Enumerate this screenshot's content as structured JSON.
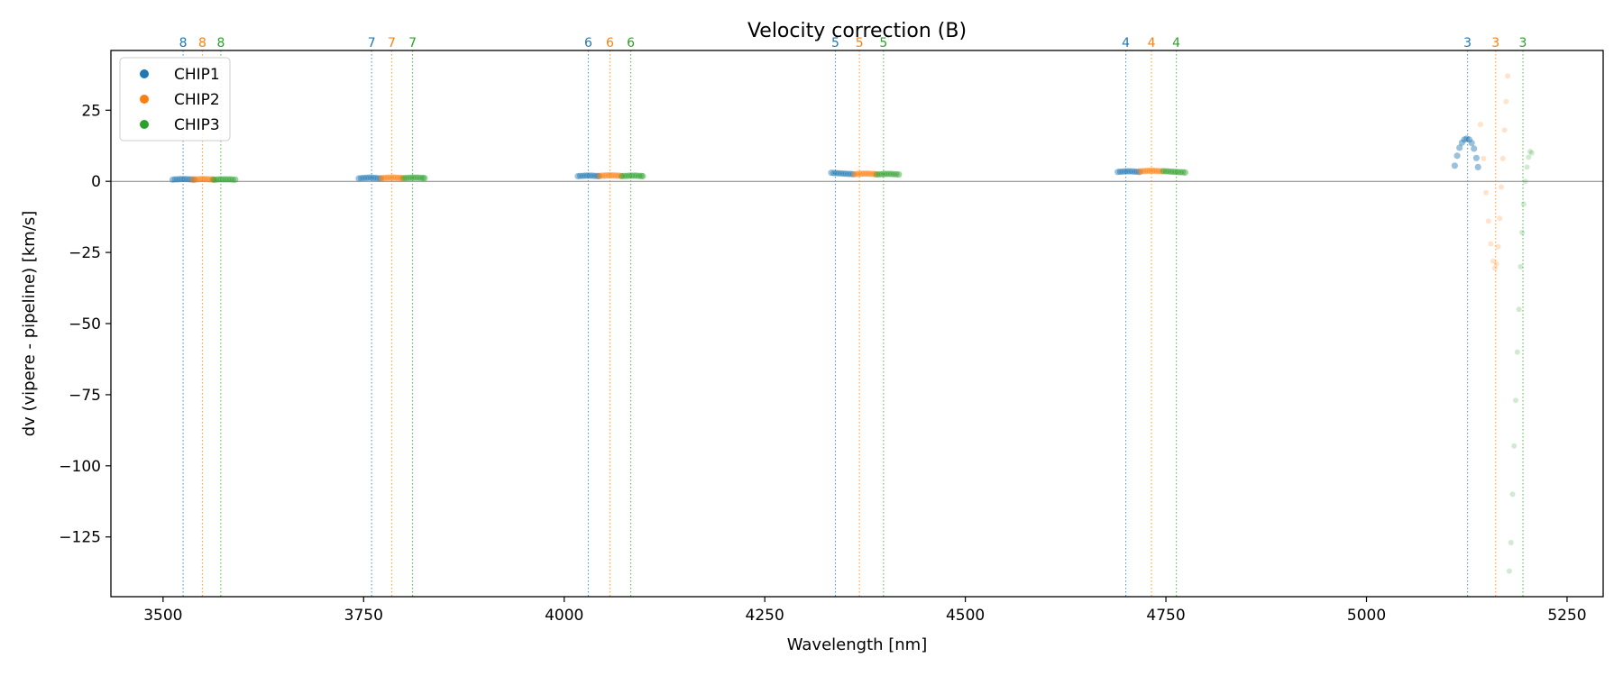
{
  "chart_data": {
    "type": "scatter",
    "title": "Velocity correction (B)",
    "xlabel": "Wavelength [nm]",
    "ylabel": "dv (vipere - pipeline) [km/s]",
    "xlim": [
      3435,
      5295
    ],
    "ylim": [
      -146,
      46
    ],
    "xticks": [
      3500,
      3750,
      4000,
      4250,
      4500,
      4750,
      5000,
      5250
    ],
    "yticks": [
      25,
      0,
      -25,
      -50,
      -75,
      -100,
      -125
    ],
    "ytick_labels": [
      "25",
      "0",
      "−25",
      "−50",
      "−75",
      "−100",
      "−125"
    ],
    "reference_line_y": 0,
    "grid": false,
    "legend": {
      "position": "top-left",
      "entries": [
        "CHIP1",
        "CHIP2",
        "CHIP3"
      ]
    },
    "colors": {
      "CHIP1": "#1f77b4",
      "CHIP2": "#ff7f0e",
      "CHIP3": "#2ca02c"
    },
    "order_markers": [
      {
        "order": "8",
        "chip": "CHIP1",
        "x": 3525
      },
      {
        "order": "8",
        "chip": "CHIP2",
        "x": 3549
      },
      {
        "order": "8",
        "chip": "CHIP3",
        "x": 3572
      },
      {
        "order": "7",
        "chip": "CHIP1",
        "x": 3760
      },
      {
        "order": "7",
        "chip": "CHIP2",
        "x": 3785
      },
      {
        "order": "7",
        "chip": "CHIP3",
        "x": 3811
      },
      {
        "order": "6",
        "chip": "CHIP1",
        "x": 4030
      },
      {
        "order": "6",
        "chip": "CHIP2",
        "x": 4057
      },
      {
        "order": "6",
        "chip": "CHIP3",
        "x": 4083
      },
      {
        "order": "5",
        "chip": "CHIP1",
        "x": 4338
      },
      {
        "order": "5",
        "chip": "CHIP2",
        "x": 4368
      },
      {
        "order": "5",
        "chip": "CHIP3",
        "x": 4398
      },
      {
        "order": "4",
        "chip": "CHIP1",
        "x": 4700
      },
      {
        "order": "4",
        "chip": "CHIP2",
        "x": 4732
      },
      {
        "order": "4",
        "chip": "CHIP3",
        "x": 4763
      },
      {
        "order": "3",
        "chip": "CHIP1",
        "x": 5126
      },
      {
        "order": "3",
        "chip": "CHIP2",
        "x": 5161
      },
      {
        "order": "3",
        "chip": "CHIP3",
        "x": 5195
      }
    ],
    "series": [
      {
        "name": "CHIP1",
        "segments": [
          {
            "order": "8",
            "x": [
              3512,
              3515,
              3518,
              3521,
              3524,
              3527,
              3530,
              3533,
              3536,
              3539
            ],
            "y": [
              0.6,
              0.7,
              0.7,
              0.8,
              0.8,
              0.8,
              0.8,
              0.7,
              0.7,
              0.6
            ]
          },
          {
            "order": "7",
            "x": [
              3744,
              3747,
              3750,
              3753,
              3756,
              3759,
              3762,
              3765,
              3768,
              3771
            ],
            "y": [
              1.0,
              1.1,
              1.2,
              1.2,
              1.3,
              1.3,
              1.2,
              1.2,
              1.1,
              1.0
            ]
          },
          {
            "order": "6",
            "x": [
              4017,
              4020,
              4023,
              4026,
              4029,
              4032,
              4035,
              4038,
              4041,
              4043
            ],
            "y": [
              1.8,
              1.9,
              1.9,
              2.0,
              2.0,
              2.0,
              2.0,
              1.9,
              1.9,
              1.8
            ]
          },
          {
            "order": "5",
            "x": [
              4333,
              4336,
              4339,
              4342,
              4345,
              4348,
              4351,
              4354,
              4357,
              4360
            ],
            "y": [
              3.0,
              2.9,
              2.9,
              2.8,
              2.8,
              2.7,
              2.7,
              2.6,
              2.6,
              2.5
            ]
          },
          {
            "order": "4",
            "x": [
              4690,
              4693,
              4696,
              4699,
              4702,
              4705,
              4708,
              4711,
              4714,
              4717
            ],
            "y": [
              3.3,
              3.4,
              3.4,
              3.5,
              3.5,
              3.5,
              3.5,
              3.4,
              3.4,
              3.3
            ]
          },
          {
            "order": "3",
            "x": [
              5110,
              5113,
              5116,
              5119,
              5122,
              5125,
              5128,
              5131,
              5134,
              5137,
              5139
            ],
            "y": [
              5.5,
              9.0,
              11.8,
              13.6,
              14.7,
              15.0,
              14.7,
              13.5,
              11.5,
              8.2,
              5.0
            ]
          }
        ]
      },
      {
        "name": "CHIP2",
        "segments": [
          {
            "order": "8",
            "x": [
              3537,
              3540,
              3543,
              3546,
              3549,
              3552,
              3555,
              3558,
              3561,
              3563
            ],
            "y": [
              0.6,
              0.7,
              0.7,
              0.8,
              0.8,
              0.8,
              0.8,
              0.7,
              0.7,
              0.6
            ]
          },
          {
            "order": "7",
            "x": [
              3772,
              3775,
              3778,
              3781,
              3784,
              3787,
              3790,
              3793,
              3796,
              3798
            ],
            "y": [
              1.1,
              1.2,
              1.2,
              1.3,
              1.3,
              1.3,
              1.3,
              1.2,
              1.2,
              1.1
            ]
          },
          {
            "order": "6",
            "x": [
              4044,
              4047,
              4050,
              4053,
              4056,
              4059,
              4062,
              4065,
              4068,
              4071
            ],
            "y": [
              1.9,
              2.0,
              2.0,
              2.1,
              2.1,
              2.1,
              2.1,
              2.0,
              2.0,
              1.9
            ]
          },
          {
            "order": "5",
            "x": [
              4362,
              4365,
              4368,
              4371,
              4374,
              4377,
              4380,
              4383,
              4386,
              4388
            ],
            "y": [
              2.5,
              2.6,
              2.6,
              2.7,
              2.7,
              2.7,
              2.7,
              2.6,
              2.6,
              2.5
            ]
          },
          {
            "order": "4",
            "x": [
              4718,
              4721,
              4724,
              4727,
              4730,
              4733,
              4736,
              4739,
              4742,
              4745
            ],
            "y": [
              3.5,
              3.6,
              3.6,
              3.7,
              3.7,
              3.7,
              3.7,
              3.6,
              3.6,
              3.5
            ]
          },
          {
            "order": "3",
            "x": [
              5142,
              5146,
              5149,
              5152,
              5155,
              5158,
              5160,
              5162,
              5164,
              5166,
              5168,
              5170,
              5172,
              5174,
              5176
            ],
            "y": [
              20.0,
              8.0,
              -4.0,
              -14.0,
              -22.0,
              -28.0,
              -30.5,
              -29.0,
              -23.0,
              -13.0,
              -2.0,
              8.0,
              18.0,
              28.0,
              37.0
            ]
          }
        ]
      },
      {
        "name": "CHIP3",
        "segments": [
          {
            "order": "8",
            "x": [
              3563,
              3566,
              3569,
              3572,
              3575,
              3578,
              3581,
              3584,
              3587,
              3590
            ],
            "y": [
              0.6,
              0.6,
              0.7,
              0.7,
              0.7,
              0.7,
              0.7,
              0.7,
              0.6,
              0.6
            ]
          },
          {
            "order": "7",
            "x": [
              3800,
              3803,
              3806,
              3809,
              3812,
              3815,
              3818,
              3821,
              3824,
              3826
            ],
            "y": [
              1.1,
              1.2,
              1.2,
              1.3,
              1.3,
              1.3,
              1.3,
              1.2,
              1.2,
              1.1
            ]
          },
          {
            "order": "6",
            "x": [
              4072,
              4075,
              4078,
              4081,
              4084,
              4087,
              4090,
              4093,
              4096,
              4098
            ],
            "y": [
              1.8,
              1.9,
              1.9,
              2.0,
              2.0,
              2.0,
              2.0,
              1.9,
              1.9,
              1.8
            ]
          },
          {
            "order": "5",
            "x": [
              4390,
              4393,
              4396,
              4399,
              4402,
              4405,
              4408,
              4411,
              4414,
              4417
            ],
            "y": [
              2.4,
              2.5,
              2.5,
              2.6,
              2.6,
              2.6,
              2.6,
              2.5,
              2.5,
              2.4
            ]
          },
          {
            "order": "4",
            "x": [
              4747,
              4750,
              4753,
              4756,
              4759,
              4762,
              4765,
              4768,
              4771,
              4774
            ],
            "y": [
              3.6,
              3.5,
              3.5,
              3.4,
              3.4,
              3.3,
              3.3,
              3.2,
              3.2,
              3.1
            ]
          },
          {
            "order": "3",
            "x": [
              5178,
              5180,
              5182,
              5184,
              5186,
              5188,
              5190,
              5192,
              5194,
              5196,
              5198,
              5200,
              5202,
              5204,
              5206
            ],
            "y": [
              -137.0,
              -127.0,
              -110.0,
              -93.0,
              -77.0,
              -60.0,
              -45.0,
              -30.0,
              -18.0,
              -8.0,
              0.0,
              5.0,
              8.5,
              10.5,
              10.0
            ]
          }
        ]
      }
    ]
  }
}
